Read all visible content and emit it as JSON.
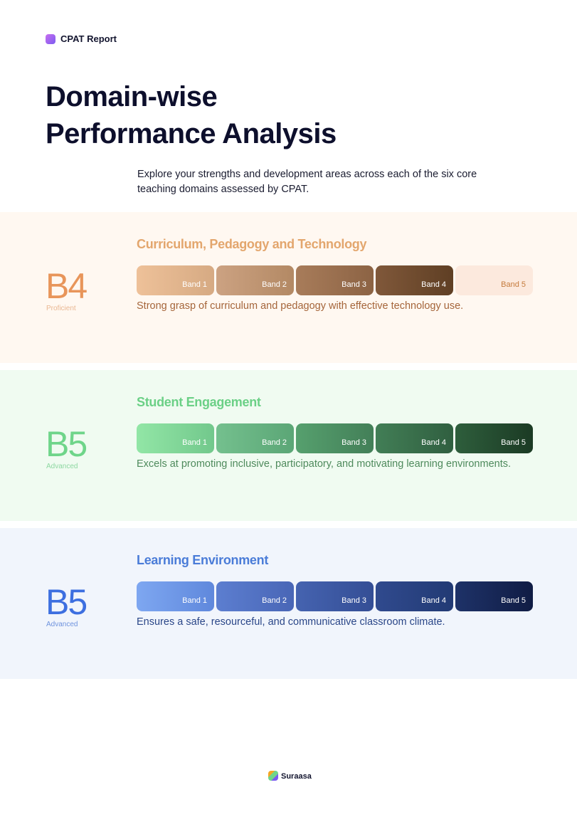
{
  "header": {
    "title": "CPAT Report"
  },
  "title": [
    "Domain-wise",
    "Performance Analysis"
  ],
  "intro": "Explore your strengths and development areas across each of the six core teaching domains assessed by CPAT.",
  "domains": [
    {
      "name": "Curriculum, Pedagogy and Technology",
      "grade": "B4",
      "level": "Proficient",
      "bands": [
        "Band 1",
        "Band 2",
        "Band 3",
        "Band 4",
        "Band 5"
      ],
      "description": "Strong grasp of curriculum and pedagogy with effective technology use."
    },
    {
      "name": "Student Engagement",
      "grade": "B5",
      "level": "Advanced",
      "bands": [
        "Band 1",
        "Band 2",
        "Band 3",
        "Band 4",
        "Band 5"
      ],
      "description": "Excels at promoting inclusive, participatory, and motivating learning environments."
    },
    {
      "name": "Learning Environment",
      "grade": "B5",
      "level": "Advanced",
      "bands": [
        "Band 1",
        "Band 2",
        "Band 3",
        "Band 4",
        "Band 5"
      ],
      "description": "Ensures a safe, resourceful, and communicative classroom climate."
    }
  ],
  "footer": {
    "brand": "Suraasa"
  }
}
